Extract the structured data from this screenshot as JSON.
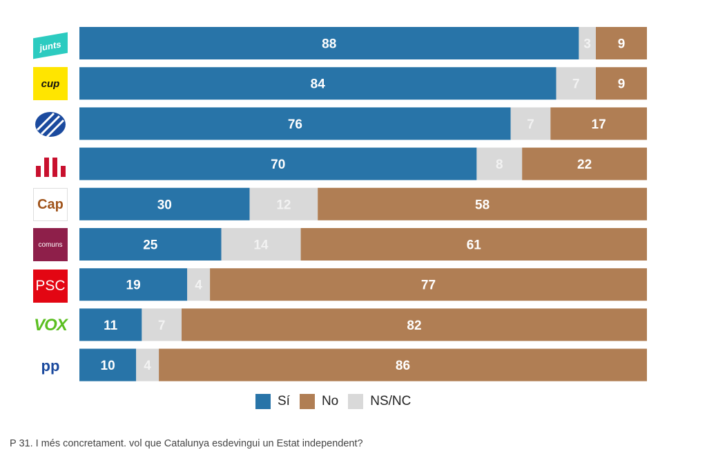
{
  "chart_data": {
    "type": "bar",
    "orientation": "horizontal",
    "stacked": true,
    "categories": [
      "junts",
      "cup",
      "PDeCAT",
      "ERC",
      "Cap",
      "comuns",
      "PSC",
      "VOX",
      "pp"
    ],
    "series": [
      {
        "name": "Sí",
        "color": "#2874a8",
        "values": [
          88,
          84,
          76,
          70,
          30,
          25,
          19,
          11,
          10
        ]
      },
      {
        "name": "NS/NC",
        "color": "#d9d9d9",
        "values": [
          3,
          7,
          7,
          8,
          12,
          14,
          4,
          7,
          4
        ]
      },
      {
        "name": "No",
        "color": "#b07e54",
        "values": [
          9,
          9,
          17,
          22,
          58,
          61,
          77,
          82,
          86
        ]
      }
    ],
    "xlim": [
      0,
      100
    ],
    "grid": false,
    "legend_position": "bottom"
  },
  "legend": {
    "items": [
      {
        "label": "Sí",
        "color": "#2874a8"
      },
      {
        "label": "No",
        "color": "#b07e54"
      },
      {
        "label": "NS/NC",
        "color": "#d9d9d9"
      }
    ]
  },
  "logos": {
    "junts": "junts",
    "cup": "cup",
    "pdecat": "PDeCAT-logo-icon",
    "erc": "ERC-logo-icon",
    "cap": "Cap",
    "comuns": "comuns",
    "psc": "PSC",
    "vox": "VOX",
    "pp": "pp"
  },
  "footnote": "P 31. I més concretament. vol que Catalunya esdevingui un Estat independent?"
}
